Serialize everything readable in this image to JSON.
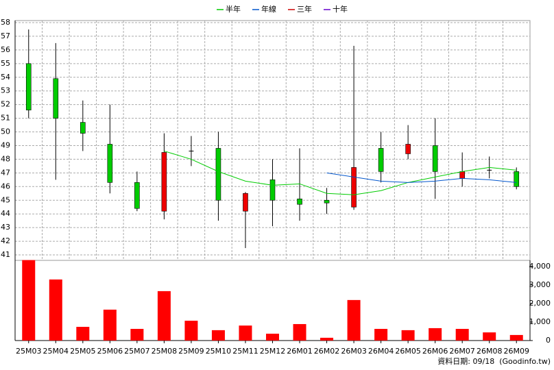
{
  "chart_data": [
    {
      "type": "candlestick",
      "categories": [
        "25M03",
        "25M04",
        "25M05",
        "25M06",
        "25M07",
        "25M08",
        "25M09",
        "25M10",
        "25M11",
        "25M12",
        "26M01",
        "26M02",
        "26M03",
        "26M04",
        "26M05",
        "26M06",
        "26M07",
        "26M08",
        "26M09"
      ],
      "open": [
        55,
        53.9,
        50.7,
        49.1,
        46.3,
        44.2,
        48.6,
        48.8,
        44.2,
        46.5,
        45.1,
        45,
        44.5,
        48.8,
        48.4,
        49,
        46.6,
        47.2,
        47.1
      ],
      "high": [
        57.5,
        56.5,
        52.3,
        52,
        47.1,
        49.9,
        49.7,
        50,
        45.6,
        48,
        48.8,
        45.9,
        56.3,
        50,
        50.5,
        51,
        48.5,
        48.2,
        47.4
      ],
      "low": [
        51,
        46.5,
        48.6,
        45.5,
        44.2,
        43.6,
        47.5,
        43.5,
        41.5,
        43.1,
        43.5,
        44,
        44.3,
        46.3,
        48,
        45.1,
        46,
        46.6,
        45.8
      ],
      "close": [
        51.6,
        51,
        49.9,
        46.3,
        44.4,
        48.5,
        48.6,
        45,
        45.5,
        45,
        44.7,
        44.8,
        47.4,
        47.1,
        49.1,
        47.1,
        47.1,
        47.2,
        46
      ],
      "up_color": "#ee0000",
      "down_color": "#00cc00",
      "series": [
        {
          "name": "半年",
          "color": "#00cc00",
          "values": [
            null,
            null,
            null,
            null,
            null,
            48.6,
            48.0,
            47.1,
            46.4,
            46.1,
            46.2,
            45.5,
            45.4,
            45.7,
            46.3,
            46.7,
            47.1,
            47.4,
            47.2
          ]
        },
        {
          "name": "年線",
          "color": "#0055cc",
          "values": [
            null,
            null,
            null,
            null,
            null,
            null,
            null,
            null,
            null,
            null,
            null,
            47.0,
            46.7,
            46.4,
            46.3,
            46.4,
            46.6,
            46.5,
            46.3
          ]
        },
        {
          "name": "三年",
          "color": "#cc0000",
          "values": [
            null,
            null,
            null,
            null,
            null,
            null,
            null,
            null,
            null,
            null,
            null,
            null,
            null,
            null,
            null,
            null,
            null,
            null,
            null
          ]
        },
        {
          "name": "十年",
          "color": "#6600cc",
          "values": [
            null,
            null,
            null,
            null,
            null,
            null,
            null,
            null,
            null,
            null,
            null,
            null,
            null,
            null,
            null,
            null,
            null,
            null,
            null
          ]
        }
      ],
      "ylim": [
        40.6,
        58.15
      ],
      "yticks": [
        41,
        42,
        43,
        44,
        45,
        46,
        47,
        48,
        49,
        50,
        51,
        52,
        53,
        54,
        55,
        56,
        57,
        58
      ],
      "grid": true,
      "legend": "top"
    },
    {
      "type": "bar",
      "values": [
        4350,
        3300,
        740,
        1670,
        630,
        2670,
        1070,
        560,
        810,
        370,
        890,
        150,
        2190,
        630,
        560,
        670,
        630,
        440,
        300
      ],
      "color": "#ff0000",
      "ylim": [
        0,
        4333
      ],
      "yticks": [
        0,
        {
          "value": 1000,
          "label": "1,000"
        },
        {
          "value": 2000,
          "label": "2,000"
        },
        {
          "value": 3000,
          "label": "3,000"
        },
        {
          "value": 4000,
          "label": "4,000"
        }
      ]
    }
  ],
  "source": "資料日期: 09/18  (Goodinfo.tw)"
}
